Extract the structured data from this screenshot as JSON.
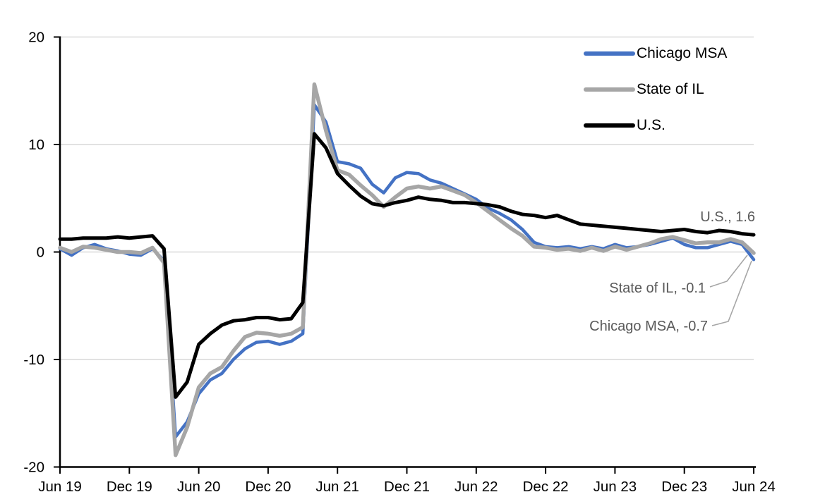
{
  "chart_data": {
    "type": "line",
    "title": "",
    "xlabel": "",
    "ylabel": "",
    "ylim": [
      -20,
      20
    ],
    "y_ticks": [
      20,
      10,
      0,
      -10,
      -20
    ],
    "x_tick_labels": [
      "Jun 19",
      "Dec 19",
      "Jun 20",
      "Dec 20",
      "Jun 21",
      "Dec 21",
      "Jun 22",
      "Dec 22",
      "Jun 23",
      "Dec 23",
      "Jun 24"
    ],
    "x_tick_step_months": 6,
    "frequency": "monthly",
    "grid": true,
    "grid_color": "#D9D9D9",
    "axis_color": "#000000",
    "annotation_color": "#595959",
    "leader_line_color": "#A6A6A6",
    "legend_position": "top-right",
    "x": [
      "Jun-19",
      "Jul-19",
      "Aug-19",
      "Sep-19",
      "Oct-19",
      "Nov-19",
      "Dec-19",
      "Jan-20",
      "Feb-20",
      "Mar-20",
      "Apr-20",
      "May-20",
      "Jun-20",
      "Jul-20",
      "Aug-20",
      "Sep-20",
      "Oct-20",
      "Nov-20",
      "Dec-20",
      "Jan-21",
      "Feb-21",
      "Mar-21",
      "Apr-21",
      "May-21",
      "Jun-21",
      "Jul-21",
      "Aug-21",
      "Sep-21",
      "Oct-21",
      "Nov-21",
      "Dec-21",
      "Jan-22",
      "Feb-22",
      "Mar-22",
      "Apr-22",
      "May-22",
      "Jun-22",
      "Jul-22",
      "Aug-22",
      "Sep-22",
      "Oct-22",
      "Nov-22",
      "Dec-22",
      "Jan-23",
      "Feb-23",
      "Mar-23",
      "Apr-23",
      "May-23",
      "Jun-23",
      "Jul-23",
      "Aug-23",
      "Sep-23",
      "Oct-23",
      "Nov-23",
      "Dec-23",
      "Jan-24",
      "Feb-24",
      "Mar-24",
      "Apr-24",
      "May-24",
      "Jun-24"
    ],
    "series": [
      {
        "name": "Chicago MSA",
        "color": "#4472C4",
        "stroke_width": 4.5,
        "end_label": "Chicago MSA, -0.7",
        "end_value": -0.7,
        "values": [
          0.3,
          -0.3,
          0.4,
          0.7,
          0.3,
          0.1,
          -0.2,
          -0.3,
          0.3,
          -0.8,
          -17.2,
          -15.8,
          -13.2,
          -11.9,
          -11.3,
          -10.0,
          -9.0,
          -8.4,
          -8.3,
          -8.6,
          -8.3,
          -7.6,
          13.7,
          12.1,
          8.4,
          8.2,
          7.8,
          6.3,
          5.5,
          6.9,
          7.4,
          7.3,
          6.7,
          6.4,
          5.9,
          5.4,
          4.9,
          4.1,
          3.6,
          3.0,
          2.1,
          0.9,
          0.5,
          0.4,
          0.5,
          0.3,
          0.5,
          0.3,
          0.7,
          0.4,
          0.5,
          0.7,
          1.0,
          1.3,
          0.7,
          0.4,
          0.4,
          0.7,
          1.0,
          0.7,
          -0.7
        ]
      },
      {
        "name": "State of IL",
        "color": "#A6A6A6",
        "stroke_width": 5.5,
        "end_label": "State of IL, -0.1",
        "end_value": -0.1,
        "values": [
          0.4,
          0.0,
          0.5,
          0.4,
          0.2,
          0.0,
          0.0,
          -0.1,
          0.4,
          -1.0,
          -18.9,
          -16.3,
          -12.6,
          -11.3,
          -10.7,
          -9.2,
          -7.9,
          -7.5,
          -7.6,
          -7.8,
          -7.6,
          -7.0,
          15.6,
          11.3,
          7.6,
          7.2,
          6.2,
          5.3,
          4.2,
          5.1,
          5.9,
          6.1,
          5.9,
          6.1,
          5.7,
          5.3,
          4.6,
          3.8,
          3.0,
          2.2,
          1.5,
          0.5,
          0.4,
          0.2,
          0.3,
          0.1,
          0.4,
          0.1,
          0.5,
          0.2,
          0.5,
          0.8,
          1.2,
          1.4,
          1.1,
          0.8,
          0.9,
          0.9,
          1.2,
          0.9,
          -0.1
        ]
      },
      {
        "name": "U.S.",
        "color": "#000000",
        "stroke_width": 5,
        "end_label": "U.S., 1.6",
        "end_value": 1.6,
        "values": [
          1.2,
          1.2,
          1.3,
          1.3,
          1.3,
          1.4,
          1.3,
          1.4,
          1.5,
          0.3,
          -13.5,
          -12.1,
          -8.6,
          -7.6,
          -6.8,
          -6.4,
          -6.3,
          -6.1,
          -6.1,
          -6.3,
          -6.2,
          -4.7,
          11.0,
          9.7,
          7.3,
          6.2,
          5.2,
          4.5,
          4.3,
          4.6,
          4.8,
          5.1,
          4.9,
          4.8,
          4.6,
          4.6,
          4.5,
          4.4,
          4.2,
          3.8,
          3.5,
          3.4,
          3.2,
          3.4,
          3.0,
          2.6,
          2.5,
          2.4,
          2.3,
          2.2,
          2.1,
          2.0,
          1.9,
          2.0,
          2.1,
          1.9,
          1.8,
          2.0,
          1.9,
          1.7,
          1.6
        ]
      }
    ],
    "annotations": [
      {
        "text": "U.S., 1.6"
      },
      {
        "text": "State of IL, -0.1"
      },
      {
        "text": "Chicago MSA, -0.7"
      }
    ]
  }
}
